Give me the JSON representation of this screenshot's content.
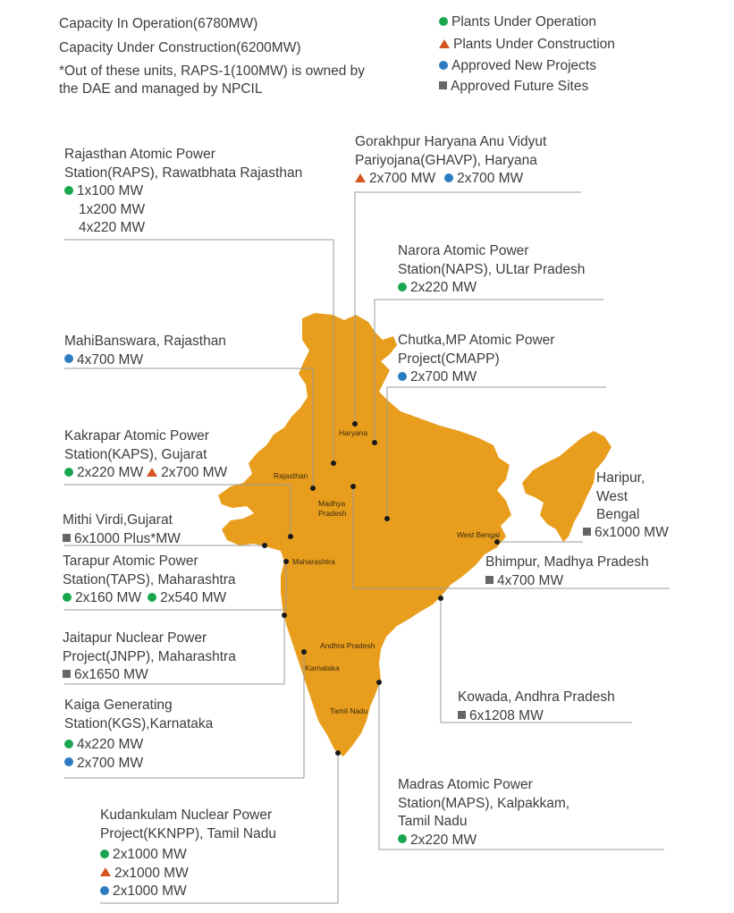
{
  "summary": {
    "capacity_operation": "Capacity In Operation(6780MW)",
    "capacity_construction": "Capacity Under Construction(6200MW)",
    "note_line1": "*Out of these units, RAPS-1(100MW) is owned by",
    "note_line2": "the DAE and managed by NPCIL"
  },
  "legend": {
    "operation": "Plants Under Operation",
    "construction": "Plants Under Construction",
    "approved": "Approved New Projects",
    "future": "Approved Future Sites"
  },
  "colors": {
    "map_fill": "#E89E1C",
    "operation": "#1AA64F",
    "construction": "#D4561E",
    "approved": "#2B7CC0",
    "future": "#666666",
    "leader": "#9a9a9a"
  },
  "states": {
    "haryana": "Haryana",
    "rajasthan": "Rajasthan",
    "madhya_pradesh_1": "Madhya",
    "madhya_pradesh_2": "Pradesh",
    "west_bengal": "West Bengal",
    "maharashtra": "Maharashtra",
    "andhra_pradesh": "Andhra Pradesh",
    "karnataka": "Karnataka",
    "tamil_nadu": "Tamil Nadu"
  },
  "plants": {
    "raps": {
      "name1": "Rajasthan Atomic Power",
      "name2": "Station(RAPS), Rawatbhata Rajasthan",
      "v1": "1x100 MW",
      "v2": "1x200 MW",
      "v3": "4x220 MW"
    },
    "ghavp": {
      "name1": "Gorakhpur Haryana Anu Vidyut",
      "name2": "Pariyojana(GHAVP), Haryana",
      "v1": "2x700 MW",
      "v2": "2x700 MW"
    },
    "naps": {
      "name1": "Narora Atomic Power",
      "name2": "Station(NAPS), ULtar Pradesh",
      "v1": "2x220 MW"
    },
    "mahi": {
      "name1": "MahiBanswara, Rajasthan",
      "v1": "4x700 MW"
    },
    "cmapp": {
      "name1": "Chutka,MP Atomic Power",
      "name2": "Project(CMAPP)",
      "v1": "2x700 MW"
    },
    "kaps": {
      "name1": "Kakrapar Atomic Power",
      "name2": "Station(KAPS), Gujarat",
      "v1": "2x220 MW",
      "v2": "2x700 MW"
    },
    "haripur": {
      "name1": "Haripur,",
      "name2": "West",
      "name3": "Bengal",
      "v1": "6x1000 MW"
    },
    "mithi": {
      "name1": "Mithi Virdi,Gujarat",
      "v1": "6x1000 Plus*MW"
    },
    "taps": {
      "name1": "Tarapur Atomic Power",
      "name2": "Station(TAPS), Maharashtra",
      "v1": "2x160 MW",
      "v2": "2x540 MW"
    },
    "bhimpur": {
      "name1": "Bhimpur, Madhya Pradesh",
      "v1": "4x700 MW"
    },
    "jnpp": {
      "name1": "Jaitapur Nuclear Power",
      "name2": "Project(JNPP), Maharashtra",
      "v1": "6x1650 MW"
    },
    "kowada": {
      "name1": "Kowada, Andhra Pradesh",
      "v1": "6x1208 MW"
    },
    "kgs": {
      "name1": "Kaiga Generating",
      "name2": "Station(KGS),Karnataka",
      "v1": "4x220 MW",
      "v2": "2x700 MW"
    },
    "maps": {
      "name1": "Madras Atomic Power",
      "name2": "Station(MAPS), Kalpakkam,",
      "name3": "Tamil Nadu",
      "v1": "2x220 MW"
    },
    "kknpp": {
      "name1": "Kudankulam Nuclear Power",
      "name2": "Project(KKNPP), Tamil Nadu",
      "v1": "2x1000 MW",
      "v2": "2x1000 MW",
      "v3": "2x1000 MW"
    }
  }
}
